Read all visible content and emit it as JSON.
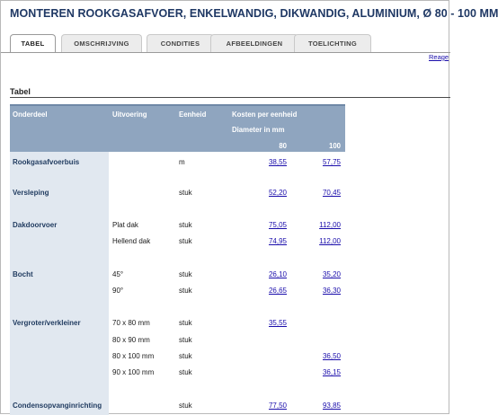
{
  "page": {
    "title": "MONTEREN ROOKGASAFVOER, ENKELWANDIG, DIKWANDIG, ALUMINIUM, Ø 80 - 100 MM"
  },
  "tabs": [
    {
      "label": "TABEL",
      "active": true
    },
    {
      "label": "OMSCHRIJVING",
      "active": false
    },
    {
      "label": "CONDITIES",
      "active": false
    },
    {
      "label": "AFBEELDINGEN",
      "active": false
    },
    {
      "label": "TOELICHTING",
      "active": false
    }
  ],
  "top_link": "Reage",
  "section_title": "Tabel",
  "table": {
    "headers": {
      "part": "Onderdeel",
      "variant": "Uitvoering",
      "unit": "Eenheid",
      "cost": "Kosten per eenheid",
      "diameter": "Diameter in mm",
      "col80": "80",
      "col100": "100"
    },
    "rows": [
      {
        "part": "Rookgasafvoerbuis",
        "variant": "",
        "unit": "m",
        "v80": "38,55",
        "v100": "57,75"
      },
      {
        "part": "Versleping",
        "variant": "",
        "unit": "stuk",
        "v80": "52,20",
        "v100": "70,45"
      },
      {
        "part": "Dakdoorvoer",
        "variant": "Plat dak",
        "unit": "stuk",
        "v80": "75,05",
        "v100": "112,00"
      },
      {
        "part": "",
        "variant": "Hellend dak",
        "unit": "stuk",
        "v80": "74,95",
        "v100": "112,00"
      },
      {
        "part": "Bocht",
        "variant": "45°",
        "unit": "stuk",
        "v80": "26,10",
        "v100": "35,20"
      },
      {
        "part": "",
        "variant": "90°",
        "unit": "stuk",
        "v80": "26,65",
        "v100": "36,30"
      },
      {
        "part": "Vergroter/verkleiner",
        "variant": "70 x 80 mm",
        "unit": "stuk",
        "v80": "35,55",
        "v100": ""
      },
      {
        "part": "",
        "variant": "80 x 90 mm",
        "unit": "stuk",
        "v80": "",
        "v100": ""
      },
      {
        "part": "",
        "variant": "80 x 100 mm",
        "unit": "stuk",
        "v80": "",
        "v100": "36,50"
      },
      {
        "part": "",
        "variant": "90 x 100 mm",
        "unit": "stuk",
        "v80": "",
        "v100": "36,15"
      },
      {
        "part": "Condensopvanginrichting",
        "variant": "",
        "unit": "stuk",
        "v80": "77,50",
        "v100": "93,85"
      }
    ]
  }
}
